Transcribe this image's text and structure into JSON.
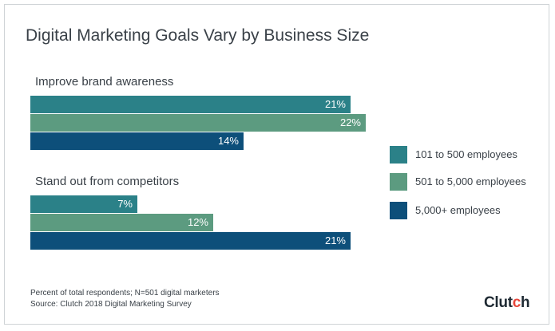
{
  "chart_data": {
    "type": "bar",
    "orientation": "horizontal",
    "title": "Digital Marketing Goals Vary by Business Size",
    "categories": [
      "Improve brand awareness",
      "Stand out from competitors"
    ],
    "unit": "%",
    "series": [
      {
        "name": "101 to 500 employees",
        "color": "#2b8188",
        "values": [
          21,
          7
        ]
      },
      {
        "name": "501 to 5,000 employees",
        "color": "#5c9b80",
        "values": [
          22,
          12
        ]
      },
      {
        "name": "5,000+ employees",
        "color": "#0d4f7a",
        "values": [
          14,
          21
        ]
      }
    ],
    "legend_position": "right",
    "grid": false
  },
  "footnote": {
    "line1": "Percent of total respondents; N=501 digital marketers",
    "line2": "Source: Clutch 2018 Digital Marketing Survey"
  },
  "brand": {
    "text_main": "Clut",
    "text_accent": "c",
    "text_end": "h",
    "accent_color": "#e8473b"
  }
}
